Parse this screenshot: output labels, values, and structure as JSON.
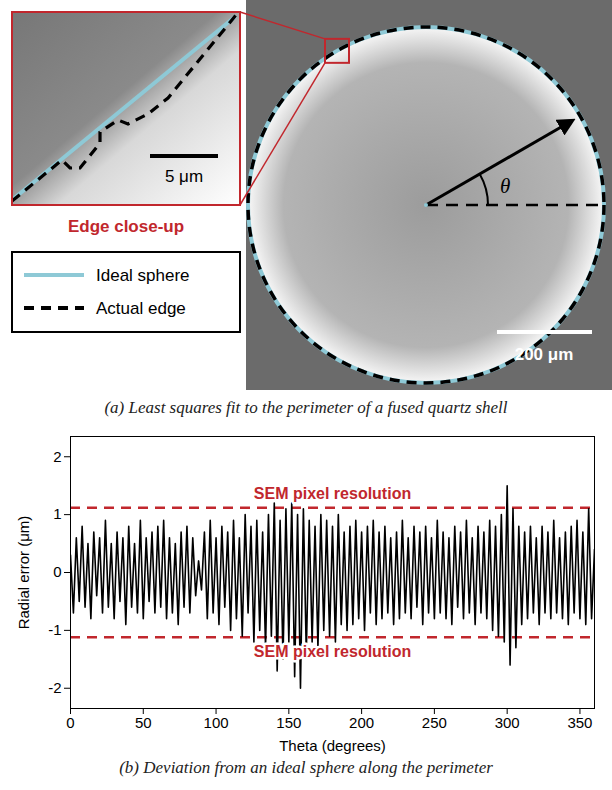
{
  "panel_a": {
    "caption": "(a) Least squares fit to the perimeter of a fused quartz shell",
    "inset_title": "Edge close-up",
    "inset_scale_bar": "5 μm",
    "scale_bar": "200 μm",
    "angle_label": "θ",
    "legend": [
      {
        "name": "Ideal sphere",
        "color": "#8ec9d6",
        "line_style": "solid"
      },
      {
        "name": "Actual edge",
        "color": "#000000",
        "line_style": "dashed"
      }
    ]
  },
  "chart_data": {
    "type": "line",
    "caption": "(b) Deviation from an ideal sphere along the perimeter",
    "x_label": "Theta (degrees)",
    "y_label": "Radial error (μm)",
    "xlim": [
      0,
      360
    ],
    "xticks": [
      0,
      50,
      100,
      150,
      200,
      250,
      300,
      350
    ],
    "ylim": [
      -2.35,
      2.35
    ],
    "yticks": [
      -2,
      -1,
      0,
      1,
      2
    ],
    "grid": false,
    "color": "#000000",
    "x": [
      0,
      2,
      4,
      6,
      8,
      10,
      12,
      14,
      16,
      18,
      20,
      22,
      24,
      26,
      28,
      30,
      32,
      34,
      36,
      38,
      40,
      42,
      44,
      46,
      48,
      50,
      52,
      54,
      56,
      58,
      60,
      62,
      64,
      66,
      68,
      70,
      72,
      74,
      76,
      78,
      80,
      82,
      84,
      86,
      88,
      90,
      92,
      94,
      96,
      98,
      100,
      102,
      104,
      106,
      108,
      110,
      112,
      114,
      116,
      118,
      120,
      122,
      124,
      126,
      128,
      130,
      132,
      134,
      136,
      138,
      140,
      142,
      144,
      146,
      148,
      150,
      152,
      154,
      156,
      158,
      160,
      162,
      164,
      166,
      168,
      170,
      172,
      174,
      176,
      178,
      180,
      182,
      184,
      186,
      188,
      190,
      192,
      194,
      196,
      198,
      200,
      202,
      204,
      206,
      208,
      210,
      212,
      214,
      216,
      218,
      220,
      222,
      224,
      226,
      228,
      230,
      232,
      234,
      236,
      238,
      240,
      242,
      244,
      246,
      248,
      250,
      252,
      254,
      256,
      258,
      260,
      262,
      264,
      266,
      268,
      270,
      272,
      274,
      276,
      278,
      280,
      282,
      284,
      286,
      288,
      290,
      292,
      294,
      296,
      298,
      300,
      302,
      304,
      306,
      308,
      310,
      312,
      314,
      316,
      318,
      320,
      322,
      324,
      326,
      328,
      330,
      332,
      334,
      336,
      338,
      340,
      342,
      344,
      346,
      348,
      350,
      352,
      354,
      356,
      358,
      360
    ],
    "values": [
      0.3,
      -0.7,
      0.6,
      -0.5,
      0.8,
      -0.6,
      0.5,
      -0.8,
      0.7,
      -0.4,
      0.6,
      -0.7,
      0.9,
      -0.6,
      0.5,
      -0.8,
      0.7,
      -0.5,
      0.6,
      -0.9,
      0.8,
      -0.6,
      0.5,
      -0.7,
      0.9,
      -0.8,
      0.6,
      -0.5,
      0.7,
      -0.7,
      0.8,
      -0.6,
      0.9,
      -0.8,
      0.6,
      -0.7,
      0.5,
      -0.9,
      0.7,
      -0.6,
      0.8,
      -0.7,
      0.6,
      -0.4,
      0.2,
      -0.3,
      0.7,
      -0.8,
      0.9,
      -0.7,
      0.6,
      -0.9,
      0.8,
      -0.6,
      0.7,
      -1.0,
      0.9,
      -0.8,
      0.6,
      -1.1,
      1.0,
      -0.7,
      0.8,
      -1.2,
      0.9,
      -1.0,
      0.7,
      -1.3,
      1.0,
      -1.1,
      1.2,
      -1.7,
      0.9,
      -1.5,
      1.1,
      -1.2,
      1.2,
      -1.8,
      1.0,
      -2.0,
      1.1,
      -1.4,
      0.9,
      -1.2,
      0.8,
      -1.3,
      1.0,
      -1.0,
      0.9,
      -1.1,
      0.8,
      -1.2,
      1.0,
      -0.9,
      0.7,
      -1.0,
      0.8,
      -0.9,
      0.9,
      -0.8,
      0.7,
      -1.0,
      0.8,
      -0.7,
      0.9,
      -0.9,
      0.7,
      -0.8,
      0.8,
      -0.7,
      0.6,
      -0.9,
      0.7,
      -0.8,
      0.9,
      -0.7,
      0.6,
      -0.8,
      0.8,
      -0.6,
      0.7,
      -0.9,
      0.8,
      -0.7,
      0.6,
      -0.8,
      0.9,
      -0.7,
      0.7,
      -0.8,
      0.6,
      -0.9,
      0.8,
      -0.6,
      0.7,
      -0.8,
      0.9,
      -0.7,
      0.6,
      -0.9,
      0.8,
      -0.7,
      0.7,
      -0.8,
      0.9,
      -1.0,
      0.8,
      -1.1,
      1.0,
      -1.2,
      1.5,
      -1.6,
      1.1,
      -1.3,
      0.8,
      -0.9,
      0.7,
      -0.8,
      0.8,
      -0.7,
      0.6,
      -0.9,
      0.8,
      -0.7,
      0.7,
      -0.8,
      0.9,
      -0.7,
      0.6,
      -0.8,
      0.7,
      -0.9,
      0.8,
      -0.7,
      0.9,
      -0.8,
      0.7,
      -0.9,
      1.1,
      -0.8,
      0.4
    ],
    "reference_lines": [
      {
        "y": 1.12,
        "label": "SEM pixel resolution",
        "color": "#c1272d",
        "line_style": "dashed"
      },
      {
        "y": -1.12,
        "label": "SEM pixel resolution",
        "color": "#c1272d",
        "line_style": "dashed"
      }
    ]
  }
}
